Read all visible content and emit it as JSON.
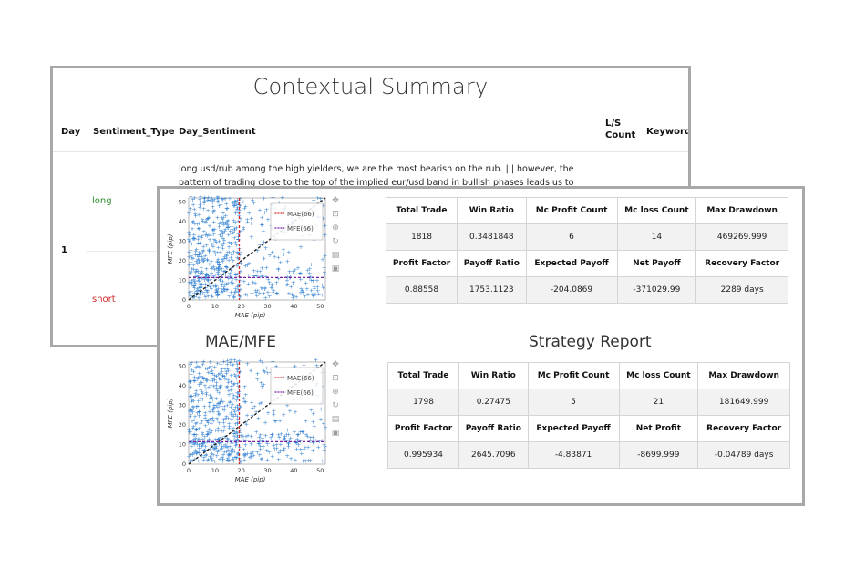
{
  "context": {
    "title": "Contextual Summary",
    "columns": {
      "day": "Day",
      "sentiment_type": "Sentiment_Type",
      "day_sentiment": "Day_Sentiment",
      "ls_count_line1": "L/S",
      "ls_count_line2": "Count",
      "keywords": "Keywords"
    },
    "row": {
      "day": "1",
      "text_line1": "long usd/rub among the high yielders, we are the most bearish on the rub. | | however, the",
      "text_line2": "pattern of trading close to the top of the implied eur/usd band in bullish phases leads us to think",
      "sentiment_long": "long",
      "sentiment_short": "short"
    },
    "colors": {
      "long": "#2e8b2e",
      "short": "#d22b2b"
    }
  },
  "plots": {
    "top": {
      "xlabel": "MAE (pip)",
      "ylabel": "MFE (pip)",
      "xticks": [
        "0",
        "10",
        "20",
        "30",
        "40",
        "50"
      ],
      "yticks": [
        "0",
        "10",
        "20",
        "30",
        "40",
        "50"
      ],
      "legend": [
        "MAE(66)",
        "MFE(66)"
      ]
    },
    "bottom": {
      "title": "MAE/MFE",
      "xlabel": "MAE (pip)",
      "ylabel": "MFE (pip)",
      "xticks": [
        "0",
        "10",
        "20",
        "30",
        "40",
        "50"
      ],
      "yticks": [
        "0",
        "10",
        "20",
        "30",
        "40",
        "50"
      ],
      "legend": [
        "MAE(66)",
        "MFE(66)"
      ]
    },
    "colors": {
      "points": "#3a86d4",
      "diagonal": "#222222",
      "mae_line": "#d22b2b",
      "mfe_line": "#7b1fa2"
    },
    "toolbar_icons": [
      "pan-icon",
      "box-zoom-icon",
      "wheel-zoom-icon",
      "reset-icon",
      "save-icon",
      "hover-icon"
    ]
  },
  "report": {
    "title": "Strategy Report",
    "table1": {
      "headers1": [
        "Total Trade",
        "Win Ratio",
        "Mc Profit Count",
        "Mc loss Count",
        "Max Drawdown"
      ],
      "values1": [
        "1818",
        "0.3481848",
        "6",
        "14",
        "469269.999"
      ],
      "headers2": [
        "Profit Factor",
        "Payoff Ratio",
        "Expected Payoff",
        "Net Payoff",
        "Recovery Factor"
      ],
      "values2": [
        "0.88558",
        "1753.1123",
        "-204.0869",
        "-371029.99",
        "2289 days"
      ]
    },
    "table2": {
      "headers1": [
        "Total Trade",
        "Win Ratio",
        "Mc Profit Count",
        "Mc loss Count",
        "Max Drawdown"
      ],
      "values1": [
        "1798",
        "0.27475",
        "5",
        "21",
        "181649.999"
      ],
      "headers2": [
        "Profit Factor",
        "Payoff Ratio",
        "Expected Payoff",
        "Net Profit",
        "Recovery Factor"
      ],
      "values2": [
        "0.995934",
        "2645.7096",
        "-4.83871",
        "-8699.999",
        "-0.04789 days"
      ]
    }
  }
}
